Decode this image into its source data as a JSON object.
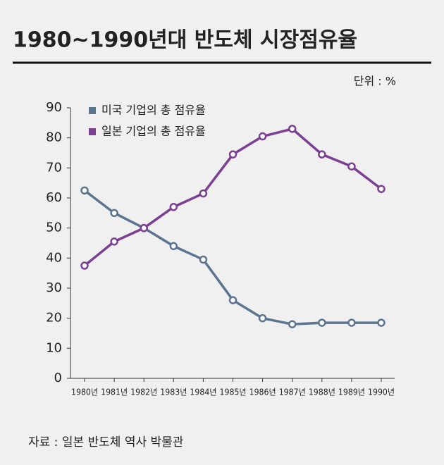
{
  "chart_data": {
    "type": "line",
    "title": "1980~1990년대 반도체 시장점유율",
    "unit": "단위 : %",
    "source": "자료 : 일본 반도체 역사 박물관",
    "categories": [
      "1980년",
      "1981년",
      "1982년",
      "1983년",
      "1984년",
      "1985년",
      "1986년",
      "1987년",
      "1988년",
      "1989년",
      "1990년"
    ],
    "series": [
      {
        "name": "미국 기업의 총 점유율",
        "color": "#5b7590",
        "values": [
          62.5,
          55,
          50,
          44,
          39.5,
          26,
          20,
          18,
          18.5,
          18.5,
          18.5
        ]
      },
      {
        "name": "일본 기업의 총 점유율",
        "color": "#7b3f93",
        "values": [
          37.5,
          45.5,
          50,
          57,
          61.5,
          74.5,
          80.5,
          83,
          74.5,
          70.5,
          63
        ]
      }
    ],
    "ylim": [
      0,
      90
    ],
    "yticks": [
      0,
      10,
      20,
      30,
      40,
      50,
      60,
      70,
      80,
      90
    ],
    "grid": false
  }
}
